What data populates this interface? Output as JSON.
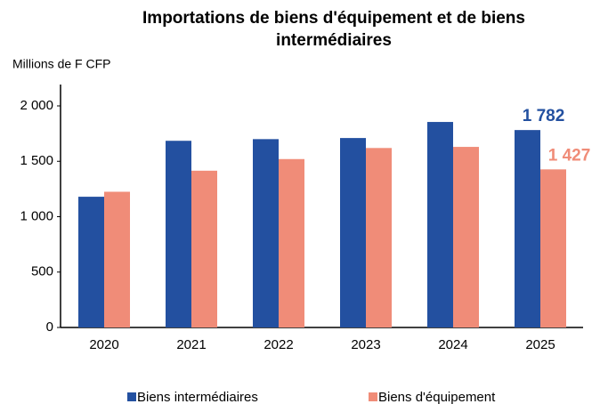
{
  "chart_data": {
    "type": "bar",
    "title": [
      "Importations de biens d'équipement et de biens",
      "intermédiaires"
    ],
    "y_axis_label": "Millions de F CFP",
    "categories": [
      "2020",
      "2021",
      "2022",
      "2023",
      "2024",
      "2025"
    ],
    "series": [
      {
        "name": "Biens intermédiaires",
        "color": "#2350a0",
        "values": [
          1180,
          1685,
          1700,
          1710,
          1855,
          1782
        ],
        "value_labels": [
          null,
          null,
          null,
          null,
          null,
          "1 782"
        ]
      },
      {
        "name": "Biens d'équipement",
        "color": "#f08c78",
        "values": [
          1225,
          1415,
          1520,
          1620,
          1630,
          1427
        ],
        "value_labels": [
          null,
          null,
          null,
          null,
          null,
          "1 427"
        ]
      }
    ],
    "ylim": [
      0,
      2000
    ],
    "yticks": [
      0,
      500,
      {
        "value": 1000,
        "label": "1 000"
      },
      {
        "value": 1500,
        "label": "1 500"
      },
      {
        "value": 2000,
        "label": "2 000"
      }
    ],
    "grid": false,
    "legend": "bottom"
  }
}
